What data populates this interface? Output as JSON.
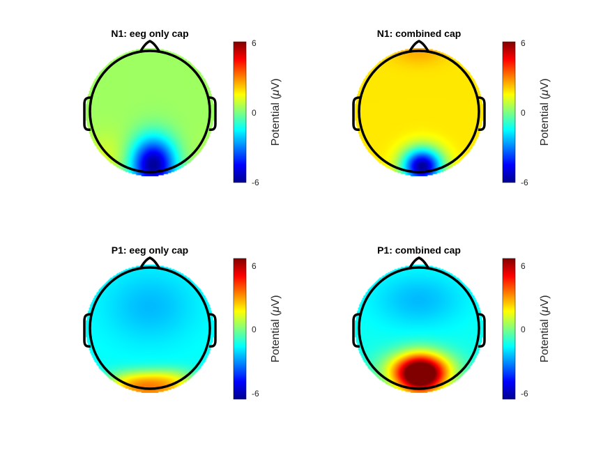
{
  "chart_data": [
    {
      "type": "heatmap",
      "title": "N1: eeg only cap",
      "colorbar": {
        "label_prefix": "Potential (",
        "label_mu": "μ",
        "label_suffix": "V)",
        "ticks": [
          "6",
          "0",
          "-6"
        ],
        "clim": [
          -6.8,
          6.8
        ]
      },
      "baseline": 0.4,
      "blobs": [
        {
          "x": 0.05,
          "y": -0.82,
          "sx": 0.26,
          "sy": 0.3,
          "amp": -7.2
        },
        {
          "x": -0.55,
          "y": -0.75,
          "sx": 0.35,
          "sy": 0.3,
          "amp": 0.9
        },
        {
          "x": 0.5,
          "y": -0.75,
          "sx": 0.3,
          "sy": 0.3,
          "amp": 0.4
        }
      ]
    },
    {
      "type": "heatmap",
      "title": "N1: combined cap",
      "colorbar": {
        "label_prefix": "Potential (",
        "label_mu": "μ",
        "label_suffix": "V)",
        "ticks": [
          "6",
          "0",
          "-6"
        ],
        "clim": [
          -6.8,
          6.8
        ]
      },
      "baseline": 2.0,
      "blobs": [
        {
          "x": 0.05,
          "y": -0.85,
          "sx": 0.22,
          "sy": 0.2,
          "amp": -8.5
        },
        {
          "x": 0.0,
          "y": 0.95,
          "sx": 0.3,
          "sy": 0.15,
          "amp": 0.8
        }
      ]
    },
    {
      "type": "heatmap",
      "title": "P1: eeg only cap",
      "colorbar": {
        "label_prefix": "Potential (",
        "label_mu": "μ",
        "label_suffix": "V)",
        "ticks": [
          "6",
          "0",
          "-6"
        ],
        "clim": [
          -6.8,
          6.8
        ]
      },
      "baseline": -1.6,
      "blobs": [
        {
          "x": 0.0,
          "y": 0.35,
          "sx": 0.5,
          "sy": 0.4,
          "amp": -1.0
        },
        {
          "x": -0.25,
          "y": -0.8,
          "sx": 0.3,
          "sy": 0.12,
          "amp": 2.3
        },
        {
          "x": 0.3,
          "y": -0.78,
          "sx": 0.3,
          "sy": 0.12,
          "amp": 2.3
        },
        {
          "x": 0.0,
          "y": -1.0,
          "sx": 0.55,
          "sy": 0.14,
          "amp": 4.0
        }
      ]
    },
    {
      "type": "heatmap",
      "title": "P1: combined cap",
      "colorbar": {
        "label_prefix": "Potential (",
        "label_mu": "μ",
        "label_suffix": "V)",
        "ticks": [
          "6",
          "0",
          "-6"
        ],
        "clim": [
          -6.8,
          6.8
        ]
      },
      "baseline": -1.5,
      "blobs": [
        {
          "x": 0.0,
          "y": 0.45,
          "sx": 0.5,
          "sy": 0.3,
          "amp": -1.1
        },
        {
          "x": 0.02,
          "y": -0.72,
          "sx": 0.26,
          "sy": 0.22,
          "amp": 9.0
        },
        {
          "x": -0.3,
          "y": -0.65,
          "sx": 0.3,
          "sy": 0.2,
          "amp": 2.0
        },
        {
          "x": 0.3,
          "y": -0.65,
          "sx": 0.3,
          "sy": 0.2,
          "amp": 2.0
        }
      ]
    }
  ]
}
